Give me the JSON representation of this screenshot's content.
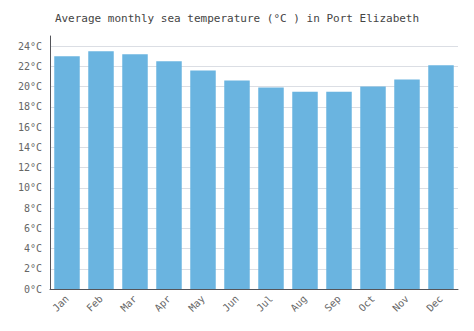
{
  "chart_data": {
    "type": "bar",
    "title": "Average monthly sea temperature (°C ) in Port Elizabeth",
    "categories": [
      "Jan",
      "Feb",
      "Mar",
      "Apr",
      "May",
      "Jun",
      "Jul",
      "Aug",
      "Sep",
      "Oct",
      "Nov",
      "Dec"
    ],
    "values": [
      23.0,
      23.5,
      23.2,
      22.5,
      21.6,
      20.6,
      19.9,
      19.5,
      19.5,
      20.0,
      20.7,
      22.1
    ],
    "color": "#6ab4e0",
    "ylim": [
      0,
      25
    ],
    "yticks": [
      {
        "value": 0,
        "label": "0°C"
      },
      {
        "value": 2,
        "label": "2°C"
      },
      {
        "value": 4,
        "label": "4°C"
      },
      {
        "value": 6,
        "label": "6°C"
      },
      {
        "value": 8,
        "label": "8°C"
      },
      {
        "value": 10,
        "label": "10°C"
      },
      {
        "value": 12,
        "label": "12°C"
      },
      {
        "value": 14,
        "label": "14°C"
      },
      {
        "value": 16,
        "label": "16°C"
      },
      {
        "value": 18,
        "label": "18°C"
      },
      {
        "value": 20,
        "label": "20°C"
      },
      {
        "value": 22,
        "label": "22°C"
      },
      {
        "value": 24,
        "label": "24°C"
      }
    ],
    "grid": true
  }
}
